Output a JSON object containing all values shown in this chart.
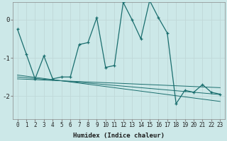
{
  "title": "",
  "xlabel": "Humidex (Indice chaleur)",
  "bg_color": "#cce8e8",
  "grid_color": "#b0d0d0",
  "line_color": "#1a6e6e",
  "xlim": [
    -0.5,
    23.5
  ],
  "ylim": [
    -2.6,
    0.45
  ],
  "x": [
    0,
    1,
    2,
    3,
    4,
    5,
    6,
    7,
    8,
    9,
    10,
    11,
    12,
    13,
    14,
    15,
    16,
    17,
    18,
    19,
    20,
    21,
    22,
    23
  ],
  "y": [
    -0.25,
    -0.9,
    -1.55,
    -0.95,
    -1.55,
    -1.5,
    -1.5,
    -0.65,
    -0.6,
    0.05,
    -1.25,
    -1.2,
    0.45,
    0.0,
    -0.5,
    0.5,
    0.05,
    -0.35,
    -2.2,
    -1.85,
    -1.9,
    -1.7,
    -1.9,
    -1.95
  ],
  "trend_top": [
    -1.45,
    -1.48,
    -1.51,
    -1.54,
    -1.57,
    -1.6,
    -1.63,
    -1.66,
    -1.69,
    -1.72,
    -1.75,
    -1.78,
    -1.81,
    -1.84,
    -1.87,
    -1.9,
    -1.93,
    -1.96,
    -1.99,
    -2.02,
    -2.05,
    -2.08,
    -2.11,
    -2.14
  ],
  "trend_mid": [
    -1.5,
    -1.52,
    -1.54,
    -1.56,
    -1.58,
    -1.6,
    -1.62,
    -1.64,
    -1.66,
    -1.68,
    -1.7,
    -1.72,
    -1.74,
    -1.76,
    -1.78,
    -1.8,
    -1.82,
    -1.84,
    -1.86,
    -1.88,
    -1.9,
    -1.92,
    -1.94,
    -1.96
  ],
  "trend_bot": [
    -1.55,
    -1.56,
    -1.57,
    -1.58,
    -1.59,
    -1.6,
    -1.61,
    -1.62,
    -1.63,
    -1.64,
    -1.65,
    -1.66,
    -1.67,
    -1.68,
    -1.69,
    -1.7,
    -1.71,
    -1.72,
    -1.73,
    -1.74,
    -1.75,
    -1.76,
    -1.77,
    -1.78
  ],
  "yticks": [
    0,
    -1,
    -2
  ],
  "xticks": [
    0,
    1,
    2,
    3,
    4,
    5,
    6,
    7,
    8,
    9,
    10,
    11,
    12,
    13,
    14,
    15,
    16,
    17,
    18,
    19,
    20,
    21,
    22,
    23
  ]
}
